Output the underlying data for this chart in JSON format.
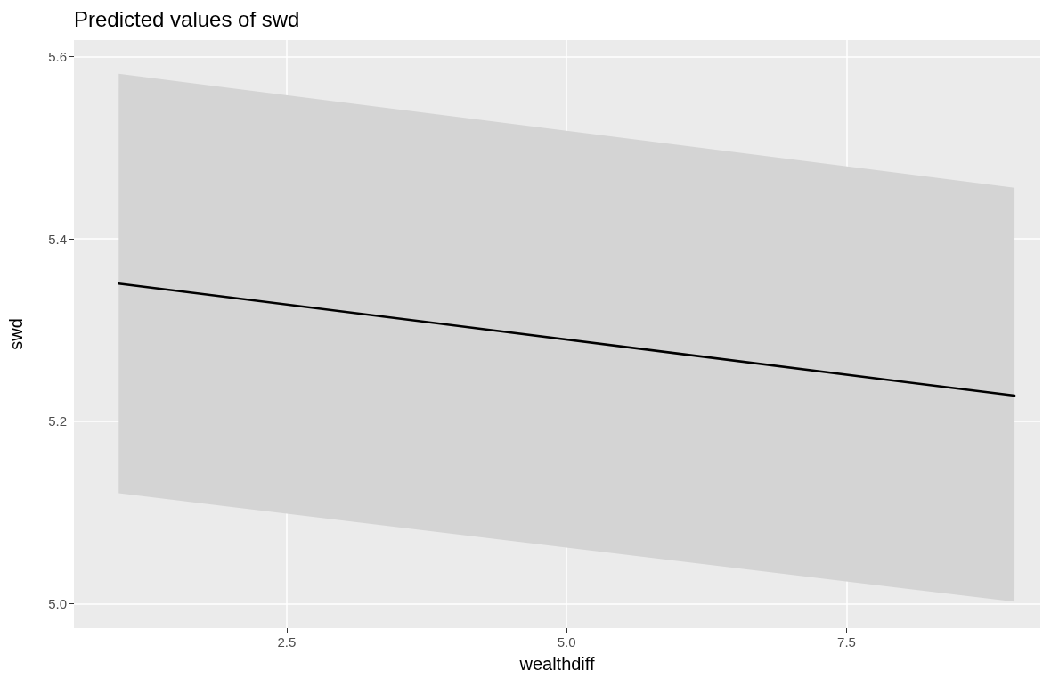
{
  "chart_data": {
    "type": "line",
    "title": "Predicted values of swd",
    "xlabel": "wealthdiff",
    "ylabel": "swd",
    "x": [
      1,
      9
    ],
    "series": [
      {
        "color": "#000000",
        "values": [
          5.351,
          5.228
        ],
        "lower": [
          5.121,
          5.002
        ],
        "upper": [
          5.581,
          5.456
        ]
      }
    ],
    "xlim": [
      0.6,
      9.23
    ],
    "ylim": [
      4.973,
      5.618
    ],
    "xticks": [
      2.5,
      {
        "value": 5,
        "label": "5.0"
      },
      7.5
    ],
    "yticks": [
      {
        "value": 5,
        "label": "5.0"
      },
      5.2,
      5.4,
      5.6
    ],
    "grid": true,
    "marker": "none",
    "line_style": "solid"
  }
}
